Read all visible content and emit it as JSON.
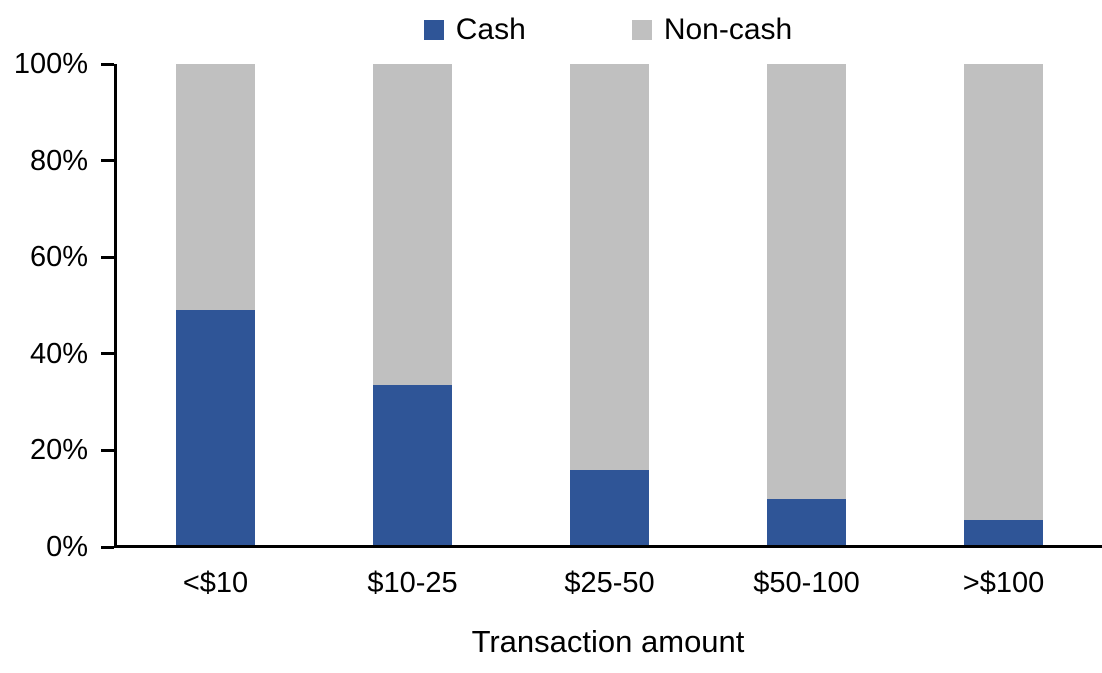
{
  "chart_data": {
    "type": "bar",
    "stacked": true,
    "percent_stacked": true,
    "title": "",
    "xlabel": "Transaction amount",
    "ylabel": "",
    "categories": [
      "<$10",
      "$10-25",
      "$25-50",
      "$50-100",
      ">$100"
    ],
    "series": [
      {
        "name": "Cash",
        "color": "#2F5597",
        "values": [
          49,
          33.5,
          16,
          10,
          5.5
        ]
      },
      {
        "name": "Non-cash",
        "color": "#C0C0C0",
        "values": [
          51,
          66.5,
          84,
          90,
          94.5
        ]
      }
    ],
    "ylim": [
      0,
      100
    ],
    "ytick_labels": [
      "0%",
      "20%",
      "40%",
      "60%",
      "80%",
      "100%"
    ],
    "grid": false,
    "legend_position": "top",
    "axis_color": "#000000"
  }
}
